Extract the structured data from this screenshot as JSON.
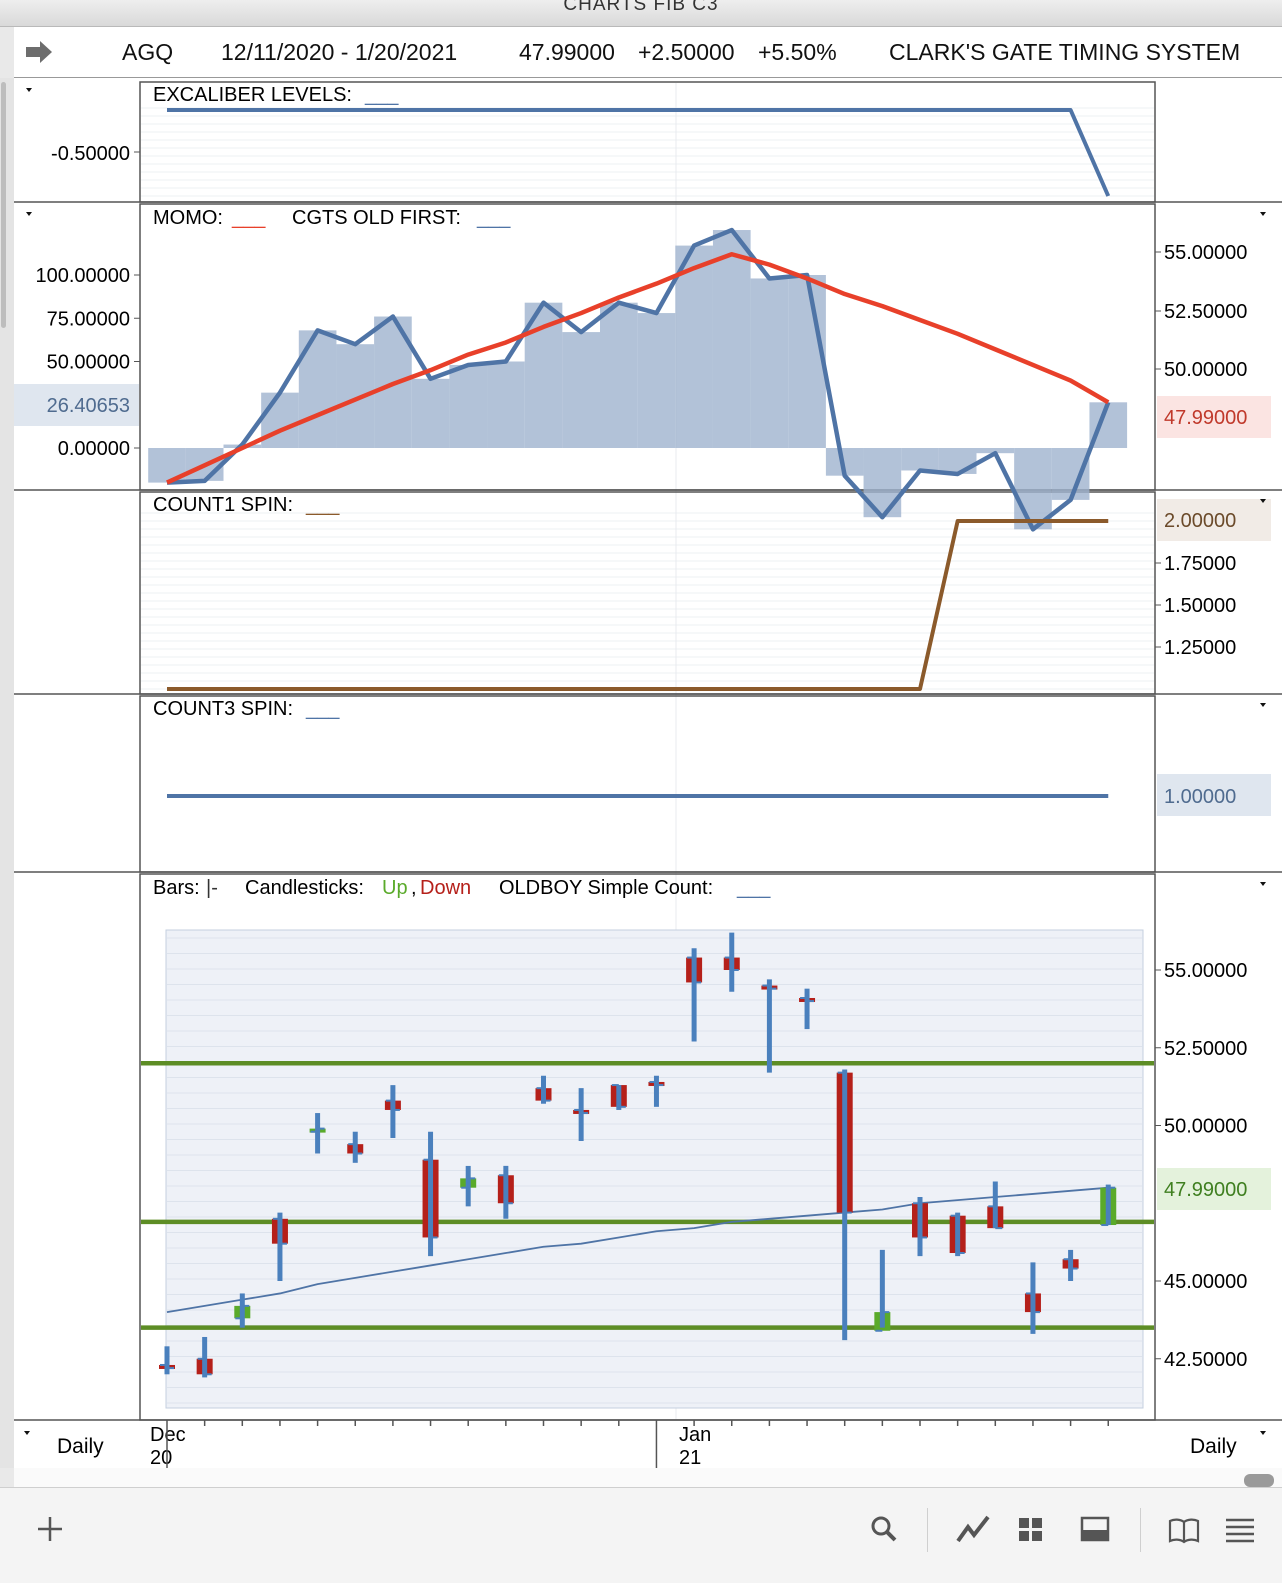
{
  "window_title": "CHARTS FIB C3",
  "header": {
    "symbol": "AGQ",
    "date_range": "12/11/2020 - 1/20/2021",
    "last": "47.99000",
    "change": "+2.50000",
    "change_pct": "+5.50%",
    "system_name": "CLARK'S GATE TIMING SYSTEM"
  },
  "panels": {
    "excaliber": {
      "label": "EXCALIBER LEVELS:",
      "legend_line": "___",
      "tick": "-0.50000"
    },
    "momo": {
      "label1": "MOMO:",
      "label2": "CGTS OLD FIRST:",
      "legend_line": "___",
      "left_ticks": [
        "100.00000",
        "75.00000",
        "50.00000",
        "0.00000"
      ],
      "left_current": "26.40653",
      "right_ticks": [
        "55.00000",
        "52.50000",
        "50.00000"
      ],
      "right_current": "47.99000"
    },
    "count1": {
      "label": "COUNT1 SPIN:",
      "legend_line": "___",
      "current": "2.00000",
      "ticks": [
        "1.75000",
        "1.50000",
        "1.25000"
      ]
    },
    "count3": {
      "label": "COUNT3 SPIN:",
      "legend_line": "___",
      "current": "1.00000"
    },
    "price": {
      "bars_label": "Bars:",
      "bars_glyph": "|-",
      "candles_label": "Candlesticks:",
      "up": "Up",
      "comma": ",",
      "down": "Down",
      "oldboy_label": "OLDBOY Simple Count:",
      "legend_line": "___",
      "right_ticks": [
        "55.00000",
        "52.50000",
        "50.00000",
        "45.00000",
        "42.50000"
      ],
      "current": "47.99000"
    }
  },
  "xaxis": {
    "month1": "Dec",
    "year1": "20",
    "month2": "Jan",
    "year2": "21",
    "left_period": "Daily",
    "right_period": "Daily"
  },
  "colors": {
    "up": "#5aaa2a",
    "down": "#b5201a",
    "bar": "#4a80bd",
    "momo_red": "#e8402a",
    "line_blue": "#4f74a6",
    "hist_fill": "#9fb3ce",
    "count1_line": "#8b5a2b",
    "green_levels": "#5d8d25",
    "blue_tags": "#dfe6ef",
    "red_tag": "#fbe4e2",
    "green_tag": "#e4f2dc",
    "brown_tag": "#f1ebe6"
  },
  "bottom_toolbar": {
    "icons": [
      "add-icon",
      "search-icon",
      "line-chart-icon",
      "grid-icon",
      "panel-icon",
      "book-icon",
      "menu-icon"
    ]
  },
  "chart_data": [
    {
      "type": "line",
      "title": "EXCALIBER LEVELS",
      "x": [
        1,
        2,
        3,
        4,
        5,
        6,
        7,
        8,
        9,
        10,
        11,
        12,
        13,
        14,
        15,
        16,
        17,
        18,
        19,
        20,
        21,
        22,
        23,
        24,
        25,
        26
      ],
      "series": [
        {
          "name": "EXCALIBER LEVELS",
          "values": [
            -0.3,
            -0.3,
            -0.3,
            -0.3,
            -0.3,
            -0.3,
            -0.3,
            -0.3,
            -0.3,
            -0.3,
            -0.3,
            -0.3,
            -0.3,
            -0.3,
            -0.3,
            -0.3,
            -0.3,
            -0.3,
            -0.3,
            -0.3,
            -0.3,
            -0.3,
            -0.3,
            -0.3,
            -0.3,
            -0.8
          ]
        }
      ]
    },
    {
      "type": "line",
      "title": "MOMO / CGTS OLD FIRST",
      "series": [
        {
          "name": "MOMO",
          "values": [
            -20,
            -19,
            2,
            32,
            68,
            60,
            76,
            40,
            48,
            50,
            84,
            67,
            84,
            78,
            117,
            126,
            98,
            100,
            -16,
            -40,
            -13,
            -15,
            -3,
            -47,
            -30,
            26.41
          ]
        },
        {
          "name": "CGTS OLD FIRST",
          "values": [
            -20,
            -10,
            0,
            10,
            19,
            28,
            37,
            45,
            54,
            61,
            70,
            78,
            87,
            95,
            104,
            112,
            106,
            98,
            89,
            82,
            74,
            66,
            57,
            48,
            39,
            26.4
          ]
        }
      ]
    },
    {
      "type": "line",
      "title": "COUNT1 SPIN",
      "series": [
        {
          "name": "COUNT1 SPIN",
          "values": [
            1,
            1,
            1,
            1,
            1,
            1,
            1,
            1,
            1,
            1,
            1,
            1,
            1,
            1,
            1,
            1,
            1,
            1,
            1,
            1,
            1,
            2,
            2,
            2,
            2,
            2
          ]
        }
      ]
    },
    {
      "type": "line",
      "title": "COUNT3 SPIN",
      "series": [
        {
          "name": "COUNT3 SPIN",
          "values": [
            1,
            1,
            1,
            1,
            1,
            1,
            1,
            1,
            1,
            1,
            1,
            1,
            1,
            1,
            1,
            1,
            1,
            1,
            1,
            1,
            1,
            1,
            1,
            1,
            1,
            1
          ]
        }
      ]
    },
    {
      "type": "candlestick",
      "title": "AGQ Daily",
      "ylim": [
        41.0,
        56.5
      ],
      "x": [
        "12/11",
        "12/14",
        "12/15",
        "12/16",
        "12/17",
        "12/18",
        "12/21",
        "12/22",
        "12/23",
        "12/24",
        "12/28",
        "12/29",
        "12/30",
        "12/31",
        "1/4",
        "1/5",
        "1/6",
        "1/7",
        "1/8",
        "1/11",
        "1/12",
        "1/13",
        "1/14",
        "1/15",
        "1/19",
        "1/20"
      ],
      "ohlc": [
        [
          42.3,
          42.9,
          42.0,
          42.2
        ],
        [
          42.5,
          43.2,
          41.9,
          42.0
        ],
        [
          43.8,
          44.6,
          43.5,
          44.2
        ],
        [
          47.0,
          47.2,
          45.0,
          46.2
        ],
        [
          49.8,
          50.4,
          49.1,
          49.9
        ],
        [
          49.4,
          49.8,
          48.8,
          49.1
        ],
        [
          50.8,
          51.3,
          49.6,
          50.5
        ],
        [
          48.9,
          49.8,
          45.8,
          46.4
        ],
        [
          48.0,
          48.7,
          47.4,
          48.3
        ],
        [
          48.4,
          48.7,
          47.0,
          47.5
        ],
        [
          51.2,
          51.6,
          50.7,
          50.8
        ],
        [
          50.5,
          51.2,
          49.5,
          50.4
        ],
        [
          51.3,
          51.3,
          50.5,
          50.6
        ],
        [
          51.4,
          51.6,
          50.6,
          51.3
        ],
        [
          55.4,
          55.7,
          52.7,
          54.6
        ],
        [
          55.4,
          56.2,
          54.3,
          55.0
        ],
        [
          54.5,
          54.7,
          51.7,
          54.4
        ],
        [
          54.1,
          54.4,
          53.1,
          54.0
        ],
        [
          51.7,
          51.8,
          43.1,
          47.2
        ],
        [
          43.4,
          46.0,
          43.5,
          44.0
        ],
        [
          47.5,
          47.7,
          45.8,
          46.4
        ],
        [
          47.1,
          47.2,
          45.8,
          45.9
        ],
        [
          47.4,
          48.2,
          46.7,
          46.7
        ],
        [
          44.6,
          45.6,
          43.3,
          44.0
        ],
        [
          45.7,
          46.0,
          45.0,
          45.4
        ],
        [
          46.8,
          48.1,
          46.8,
          48.0
        ]
      ],
      "oldboy_simple_count": [
        44.0,
        44.2,
        44.4,
        44.6,
        44.9,
        45.1,
        45.3,
        45.5,
        45.7,
        45.9,
        46.1,
        46.2,
        46.4,
        46.6,
        46.7,
        46.9,
        47.0,
        47.1,
        47.2,
        47.3,
        47.5,
        47.6,
        47.7,
        47.8,
        47.9,
        48.0
      ],
      "horizontal_levels": [
        52.0,
        46.9,
        43.5
      ]
    }
  ]
}
